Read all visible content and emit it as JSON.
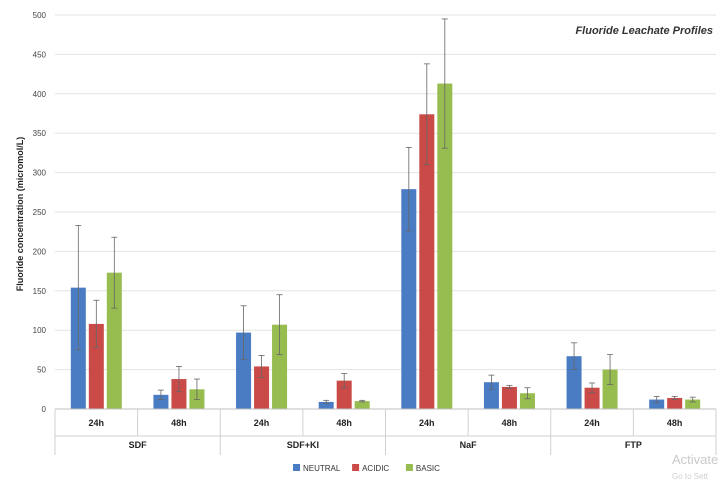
{
  "chart_data": {
    "type": "bar",
    "title": "Fluoride Leachate Profiles",
    "ylabel": "Fluoride concentration (micromol/L)",
    "xlabel": "",
    "ylim": [
      0,
      500
    ],
    "yticks": [
      0,
      50,
      100,
      150,
      200,
      250,
      300,
      350,
      400,
      450,
      500
    ],
    "grid": true,
    "legend_position": "bottom",
    "groups": [
      "SDF",
      "SDF+KI",
      "NaF",
      "FTP"
    ],
    "subgroups": [
      "24h",
      "48h"
    ],
    "series": [
      {
        "name": "NEUTRAL",
        "color": "#4a7cc4",
        "values": [
          154,
          18,
          97,
          9,
          279,
          34,
          67,
          12
        ],
        "errors": [
          79,
          6,
          34,
          2,
          53,
          9,
          17,
          4
        ]
      },
      {
        "name": "ACIDIC",
        "color": "#c94a47",
        "values": [
          108,
          38,
          54,
          36,
          374,
          28,
          27,
          14
        ],
        "errors": [
          30,
          16,
          14,
          9,
          64,
          2,
          6,
          2
        ]
      },
      {
        "name": "BASIC",
        "color": "#97bc4f",
        "values": [
          173,
          25,
          107,
          10,
          413,
          20,
          50,
          12
        ],
        "errors": [
          45,
          13,
          38,
          1,
          82,
          7,
          19,
          3
        ]
      }
    ]
  },
  "watermark": {
    "line1": "Activate",
    "line2": "Go to Sett"
  }
}
